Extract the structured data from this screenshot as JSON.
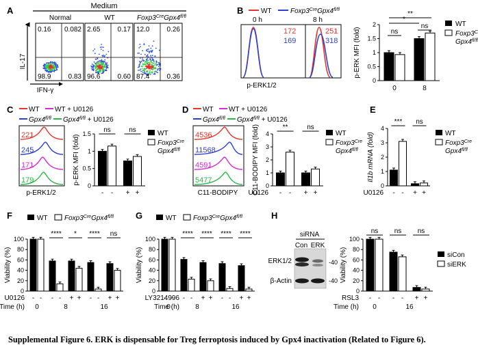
{
  "caption": "Supplemental Figure 6. ERK is dispensable for Treg ferroptosis induced by Gpx4 inactivation (Related to Figure 6).",
  "colors": {
    "wt_red": "#e8342b",
    "gpx4_blue": "#2b3fd6",
    "wt_u0126_magenta": "#d62bd6",
    "gpx4_u0126_green": "#2bb84a",
    "dot_blue": "#2b4fe0",
    "dot_green": "#3cc84a",
    "dot_red": "#e0322b"
  },
  "panels": {
    "A": {
      "letter": "A",
      "header": "Medium",
      "titles": [
        "Normal",
        "WT",
        "Foxp3CreGpx4fl/fl"
      ],
      "yaxis": "IL-17",
      "xaxis": "IFN-γ",
      "plots": [
        {
          "tl": "0.16",
          "tr": "0.082",
          "bl": "98.9",
          "br": "0.83"
        },
        {
          "tl": "2.65",
          "tr": "0.17",
          "bl": "96.6",
          "br": "0.60"
        },
        {
          "tl": "12.0",
          "tr": "0.26",
          "bl": "87.4",
          "br": "0.36"
        }
      ]
    },
    "B": {
      "letter": "B",
      "legend": [
        "WT",
        "Foxp3CreGpx4fl/fl"
      ],
      "hist_titles": [
        "0 h",
        "8 h"
      ],
      "mfi": [
        {
          "wt": "172",
          "gpx4": "169"
        },
        {
          "wt": "251",
          "gpx4": "318"
        }
      ],
      "xlabel": "p-ERK1/2",
      "ylabel": "p-ERK MFI (fold)",
      "sig": [
        "ns",
        "ns",
        "*",
        "**"
      ],
      "xgroups": [
        "0",
        "8"
      ],
      "bar_legend": [
        "WT",
        "Foxp3CreGpx4fl/fl"
      ]
    },
    "C": {
      "letter": "C",
      "legend": [
        "WT",
        "WT + U0126",
        "Gpx4fl/fl",
        "Gpx4fl/fl + U0126"
      ],
      "mfi": [
        "221",
        "245",
        "171",
        "179"
      ],
      "xlabel": "p-ERK1/2",
      "ylabel": "p-ERK MFI (fold)",
      "sig": [
        "ns",
        "ns"
      ],
      "treat_label": "U0126",
      "treat": [
        "-",
        "-",
        "+",
        "+"
      ],
      "bar_legend": [
        "WT",
        "Foxp3CreGpx4fl/fl"
      ]
    },
    "D": {
      "letter": "D",
      "legend": [
        "WT",
        "WT + U0126",
        "Gpx4fl/fl",
        "Gpx4fl/fl + U0126"
      ],
      "mfi": [
        "4536",
        "11568",
        "4591",
        "5477"
      ],
      "xlabel": "C11-BODIPY",
      "ylabel": "C11-BODIPY MFI (fold)",
      "sig": [
        "**",
        "ns"
      ],
      "treat_label": "U0126",
      "treat": [
        "-",
        "-",
        "+",
        "+"
      ],
      "bar_legend": [
        "WT",
        "Foxp3CreGpx4fl/fl"
      ]
    },
    "E": {
      "letter": "E",
      "ylabel": "Il1b mRNA (fold)",
      "sig": [
        "***",
        "ns"
      ],
      "treat_label": "U0126",
      "treat": [
        "-",
        "-",
        "+",
        "+"
      ],
      "bar_legend": [
        "WT",
        "Foxp3CreGpx4fl/fl"
      ]
    },
    "F": {
      "letter": "F",
      "legend": [
        "WT",
        "Foxp3CreGpx4fl/fl"
      ],
      "ylabel": "Viability (%)",
      "sig": [
        "****",
        "*",
        "****",
        "ns"
      ],
      "treat_label": "U0126",
      "time_label": "Time (h)",
      "times": [
        "0",
        "8",
        "16"
      ],
      "treat": [
        "-",
        "-",
        "-",
        "-",
        "+",
        "+",
        "-",
        "-",
        "+",
        "+"
      ]
    },
    "G": {
      "letter": "G",
      "legend": [
        "WT",
        "Foxp3CreGpx4fl/fl"
      ],
      "ylabel": "Viability (%)",
      "sig": [
        "****",
        "****",
        "****",
        "****"
      ],
      "treat_label": "LY3214996",
      "time_label": "Time (h)",
      "times": [
        "0",
        "8",
        "16"
      ],
      "treat": [
        "-",
        "-",
        "-",
        "-",
        "+",
        "+",
        "-",
        "-",
        "+",
        "+"
      ]
    },
    "H": {
      "letter": "H",
      "sirna": "siRNA",
      "lanes": [
        "Con",
        "ERK"
      ],
      "blots": [
        "ERK1/2",
        "β-Actin"
      ],
      "mw": [
        "40",
        "40"
      ],
      "ylabel": "Viability (%)",
      "sig": [
        "ns",
        "ns",
        "ns"
      ],
      "treat_label": "RSL3",
      "time_label": "Time (h)",
      "times": [
        "0",
        "16"
      ],
      "treat": [
        "-",
        "-",
        "-",
        "-",
        "+",
        "+"
      ],
      "bar_legend": [
        "siCon",
        "siERK"
      ]
    }
  },
  "chart_data": [
    {
      "type": "bar",
      "id": "B",
      "categories": [
        "0 h",
        "8 h"
      ],
      "ylabel": "p-ERK MFI (fold)",
      "ylim": [
        0,
        2
      ],
      "series": [
        {
          "name": "WT",
          "values": [
            1.0,
            1.5
          ]
        },
        {
          "name": "Foxp3CreGpx4fl/fl",
          "values": [
            0.93,
            1.7
          ]
        }
      ]
    },
    {
      "type": "bar",
      "id": "C",
      "categories": [
        "-",
        "+"
      ],
      "ylabel": "p-ERK MFI (fold)",
      "ylim": [
        0,
        1.5
      ],
      "series": [
        {
          "name": "WT",
          "values": [
            1.0,
            0.72
          ]
        },
        {
          "name": "Foxp3CreGpx4fl/fl",
          "values": [
            1.15,
            0.85
          ]
        }
      ]
    },
    {
      "type": "bar",
      "id": "D",
      "categories": [
        "-",
        "+"
      ],
      "ylabel": "C11-BODIPY MFI (fold)",
      "ylim": [
        0,
        4
      ],
      "series": [
        {
          "name": "WT",
          "values": [
            1.0,
            1.0
          ]
        },
        {
          "name": "Foxp3CreGpx4fl/fl",
          "values": [
            2.6,
            1.3
          ]
        }
      ]
    },
    {
      "type": "bar",
      "id": "E",
      "categories": [
        "-",
        "+"
      ],
      "ylabel": "Il1b mRNA (fold)",
      "ylim": [
        0,
        4
      ],
      "series": [
        {
          "name": "WT",
          "values": [
            1.1,
            0.15
          ]
        },
        {
          "name": "Foxp3CreGpx4fl/fl",
          "values": [
            3.1,
            0.2
          ]
        }
      ]
    },
    {
      "type": "bar",
      "id": "F",
      "categories": [
        "0",
        "8 -",
        "8 +",
        "16 -",
        "16 +"
      ],
      "ylabel": "Viability (%)",
      "ylim": [
        0,
        100
      ],
      "series": [
        {
          "name": "WT",
          "values": [
            100,
            58,
            58,
            55,
            53
          ]
        },
        {
          "name": "Foxp3CreGpx4fl/fl",
          "values": [
            100,
            14,
            44,
            4,
            40
          ]
        }
      ]
    },
    {
      "type": "bar",
      "id": "G",
      "categories": [
        "0",
        "8 -",
        "8 +",
        "16 -",
        "16 +"
      ],
      "ylabel": "Viability (%)",
      "ylim": [
        0,
        100
      ],
      "series": [
        {
          "name": "WT",
          "values": [
            100,
            61,
            55,
            53,
            49
          ]
        },
        {
          "name": "Foxp3CreGpx4fl/fl",
          "values": [
            100,
            23,
            20,
            5,
            4
          ]
        }
      ]
    },
    {
      "type": "bar",
      "id": "H",
      "categories": [
        "0",
        "16 -",
        "16 +"
      ],
      "ylabel": "Viability (%)",
      "ylim": [
        0,
        100
      ],
      "series": [
        {
          "name": "siCon",
          "values": [
            100,
            75,
            7
          ]
        },
        {
          "name": "siERK",
          "values": [
            100,
            66,
            4
          ]
        }
      ]
    }
  ]
}
